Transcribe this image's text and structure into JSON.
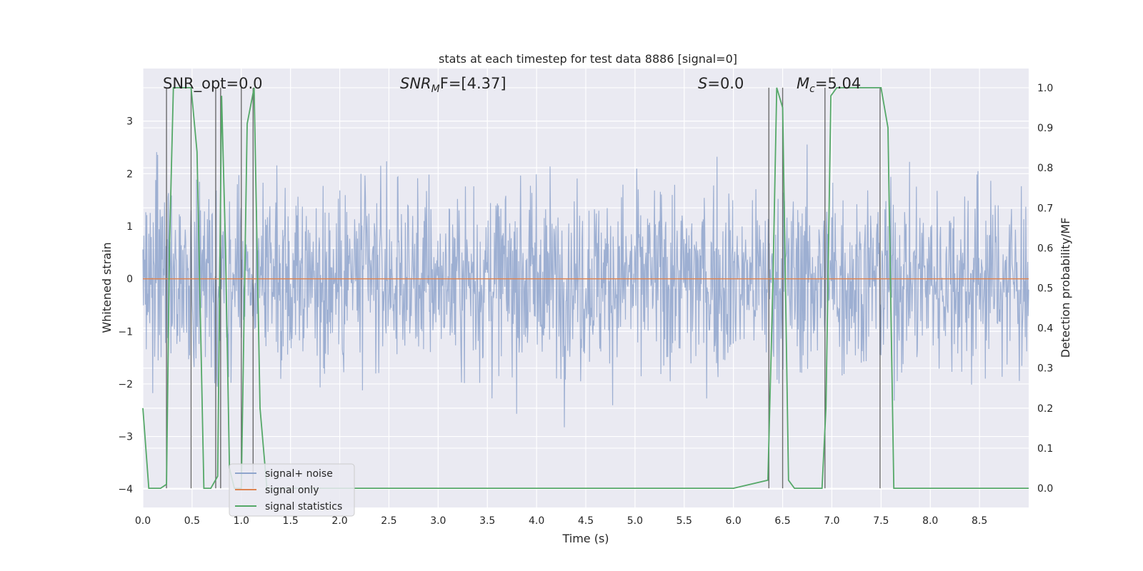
{
  "chart_data": {
    "type": "line",
    "title": "stats at each timestep for test data 8886 [signal=0]",
    "xlabel": "Time (s)",
    "ylabel": "Whitened strain",
    "ylabel_right": "Detection probability/MF",
    "xlim": [
      0,
      9.0
    ],
    "ylim": [
      -4.35,
      4.0
    ],
    "ylim_right": [
      -0.048,
      1.048
    ],
    "xticks": [
      "0.0",
      "0.5",
      "1.0",
      "1.5",
      "2.0",
      "2.5",
      "3.0",
      "3.5",
      "4.0",
      "4.5",
      "5.0",
      "5.5",
      "6.0",
      "6.5",
      "7.0",
      "7.5",
      "8.0",
      "8.5"
    ],
    "yticks_left": [
      "3",
      "2",
      "1",
      "0",
      "−1",
      "−2",
      "−3",
      "−4"
    ],
    "yticks_right": [
      "1.0",
      "0.9",
      "0.8",
      "0.7",
      "0.6",
      "0.5",
      "0.4",
      "0.3",
      "0.2",
      "0.1",
      "0.0"
    ],
    "grid": true,
    "legend_placement": "lower-left",
    "annotations": {
      "snr_opt": "SNR_opt=0.0",
      "snr_mf_base": "SNR",
      "snr_mf_sub": "M",
      "snr_mf_rest": "F=[4.37]",
      "s_var": "S",
      "s_rest": "=0.0",
      "mc_base": "M",
      "mc_sub": "c",
      "mc_rest": "=5.04"
    },
    "series": [
      {
        "name": "signal+ noise",
        "color": "#8fa5cc",
        "description_values": "noise band mostly within -1.7..1.7, peaks up to 3.6 and down to -3.8"
      },
      {
        "name": "signal only",
        "color": "#dd8452",
        "x": [
          0,
          9.0
        ],
        "y": [
          0,
          0
        ]
      },
      {
        "name": "signal statistics",
        "color": "#55a868",
        "axis": "right",
        "x": [
          0.0,
          0.06,
          0.18,
          0.24,
          0.27,
          0.31,
          0.36,
          0.42,
          0.49,
          0.55,
          0.62,
          0.69,
          0.76,
          0.8,
          0.84,
          0.88,
          0.93,
          1.0,
          1.06,
          1.13,
          1.19,
          1.26,
          1.35,
          1.5,
          2.0,
          3.0,
          4.0,
          5.0,
          6.0,
          6.35,
          6.4,
          6.44,
          6.5,
          6.56,
          6.62,
          6.7,
          6.9,
          6.94,
          6.99,
          7.05,
          7.12,
          7.5,
          7.57,
          7.63,
          7.7,
          8.0,
          9.0
        ],
        "y": [
          0.2,
          0.0,
          0.0,
          0.01,
          0.6,
          1.0,
          1.0,
          1.0,
          1.0,
          0.84,
          0.0,
          0.0,
          0.03,
          0.98,
          0.6,
          0.05,
          0.0,
          0.0,
          0.91,
          1.0,
          0.2,
          0.0,
          0.0,
          0.0,
          0.0,
          0.0,
          0.0,
          0.0,
          0.0,
          0.02,
          0.5,
          1.0,
          0.95,
          0.02,
          0.0,
          0.0,
          0.0,
          0.2,
          0.98,
          1.0,
          1.0,
          1.0,
          0.9,
          0.0,
          0.0,
          0.0,
          0.0
        ]
      }
    ],
    "vertical_markers_x": [
      0.24,
      0.49,
      0.74,
      0.79,
      1.0,
      1.12,
      6.36,
      6.5,
      6.93,
      7.49
    ]
  }
}
